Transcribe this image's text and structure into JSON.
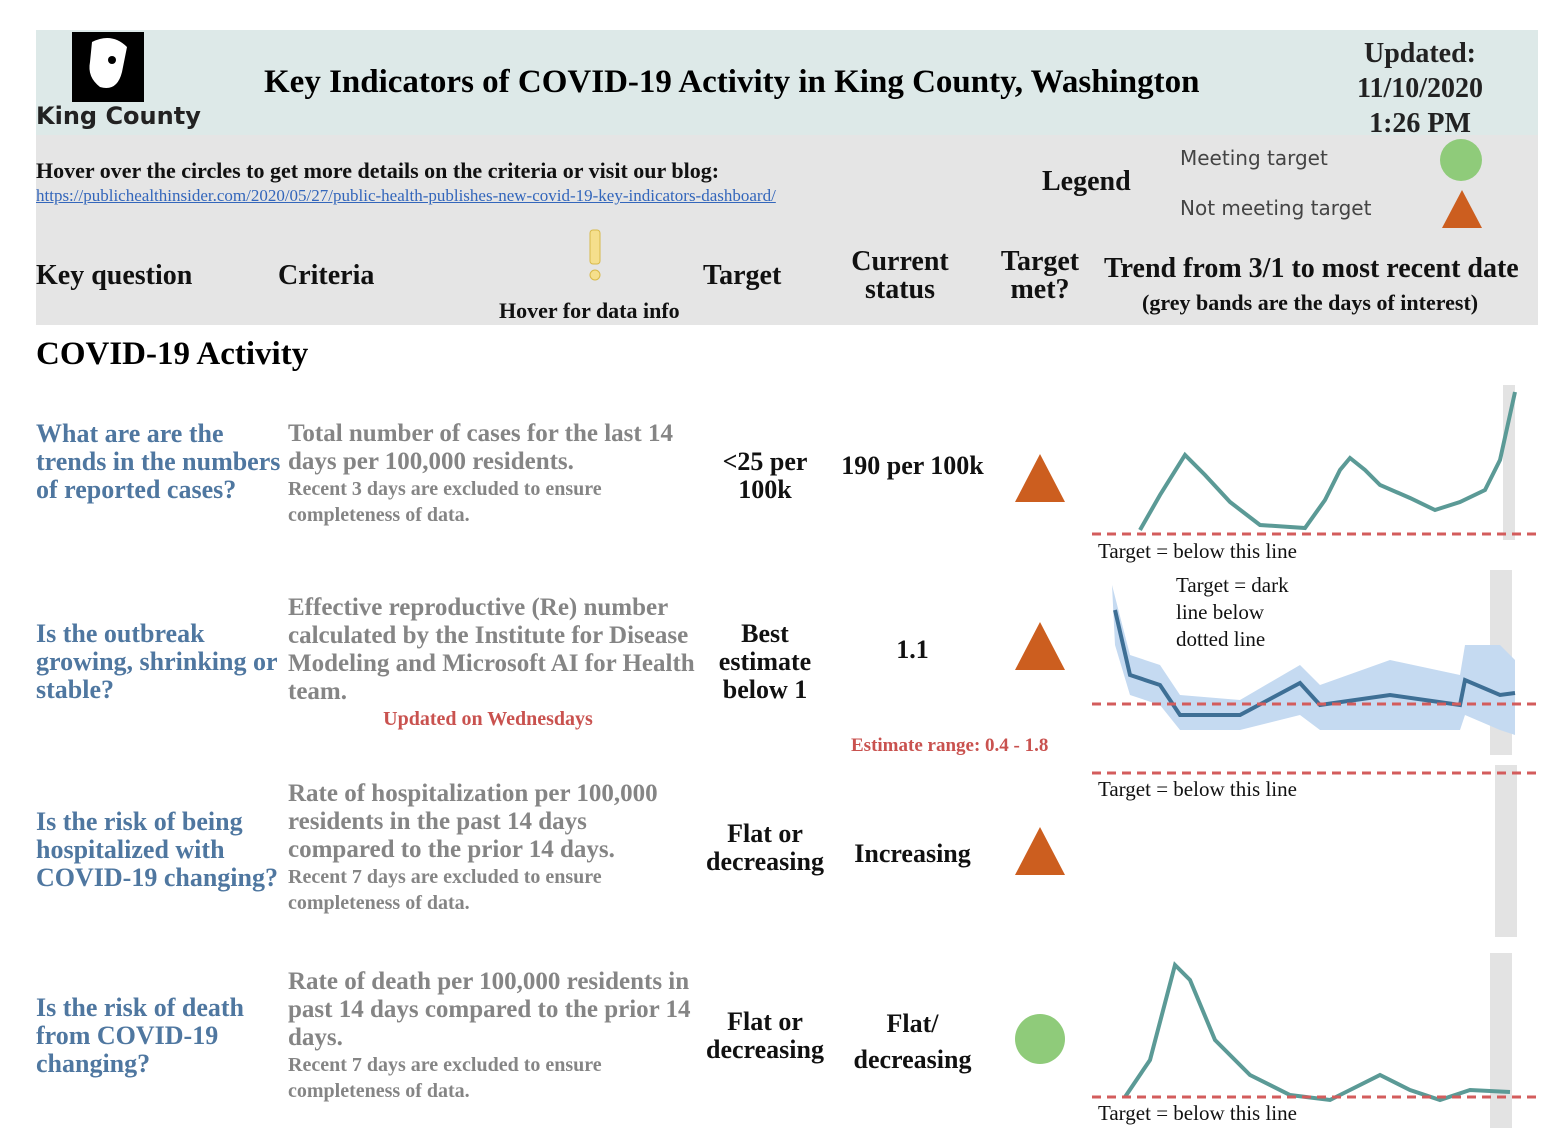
{
  "header": {
    "logo_text": "King County",
    "title": "Key Indicators of COVID-19 Activity in King County, Washington",
    "updated": [
      "Updated:",
      "11/10/2020",
      "1:26 PM"
    ]
  },
  "info": {
    "text": "Hover over the circles to get more details on the criteria or visit our blog:",
    "link": "https://publichealthinsider.com/2020/05/27/public-health-publishes-new-covid-19-key-indicators-dashboard/"
  },
  "legend": {
    "title": "Legend",
    "items": [
      "Meeting target",
      "Not meeting target"
    ]
  },
  "columns": {
    "question": "Key question",
    "criteria": "Criteria",
    "hover": "Hover for data info",
    "target": "Target",
    "status": "Current status",
    "met": "Target met?",
    "trend": "Trend from 3/1 to most recent date",
    "trend_note": "(grey bands are the days of interest)"
  },
  "section": "COVID-19 Activity",
  "rows": [
    {
      "question": "What are are the trends in the numbers of reported cases?",
      "criteria": "Total number of cases for the last 14 days per 100,000 residents.",
      "note": "Recent 3 days are excluded to ensure completeness of data.",
      "target": "<25 per 100k",
      "status": "190 per 100k",
      "met": false,
      "annotation": "Target =  below this line"
    },
    {
      "question": "Is the outbreak growing, shrinking or stable?",
      "criteria": "Effective reproductive (Re) number calculated by the Institute for Disease Modeling and Microsoft AI for Health team.",
      "note": "Updated on Wednesdays",
      "target": "Best estimate below 1",
      "status": "1.1",
      "status_note": "Estimate range: 0.4 - 1.8",
      "met": false,
      "annotation": "Target = dark line below dotted line"
    },
    {
      "question": "Is the risk of being hospitalized with COVID-19 changing?",
      "criteria": "Rate of hospitalization per 100,000 residents in the past 14 days compared to the prior 14 days.",
      "note": "Recent 7 days are excluded to ensure completeness of data.",
      "target": "Flat or decreasing",
      "status": "Increasing",
      "met": false,
      "annotation": "Target = below this line"
    },
    {
      "question": "Is the risk of death from COVID-19 changing?",
      "criteria": "Rate of death per 100,000 residents in past 14 days compared to the prior 14 days.",
      "note": "Recent 7 days are excluded to ensure completeness of data.",
      "target": "Flat or decreasing",
      "status": "Flat/ decreasing",
      "met": true,
      "annotation": "Target = below this line"
    }
  ]
}
